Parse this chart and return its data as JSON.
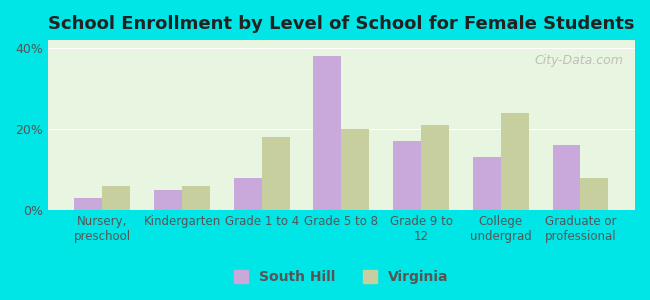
{
  "title": "School Enrollment by Level of School for Female Students",
  "categories": [
    "Nursery,\npreschool",
    "Kindergarten",
    "Grade 1 to 4",
    "Grade 5 to 8",
    "Grade 9 to\n12",
    "College\nundergrad",
    "Graduate or\nprofessional"
  ],
  "south_hill": [
    3.0,
    5.0,
    8.0,
    38.0,
    17.0,
    13.0,
    16.0
  ],
  "virginia": [
    6.0,
    6.0,
    18.0,
    20.0,
    21.0,
    24.0,
    8.0
  ],
  "south_hill_color": "#c9a8dc",
  "virginia_color": "#c8cf9e",
  "background_color": "#00e5e5",
  "plot_bg_top": "#e8f5e0",
  "plot_bg_bottom": "#f5fff5",
  "ylim": [
    0,
    42
  ],
  "yticks": [
    0,
    20,
    40
  ],
  "ytick_labels": [
    "0%",
    "20%",
    "40%"
  ],
  "watermark": "City-Data.com",
  "bar_width": 0.35,
  "legend_labels": [
    "South Hill",
    "Virginia"
  ]
}
